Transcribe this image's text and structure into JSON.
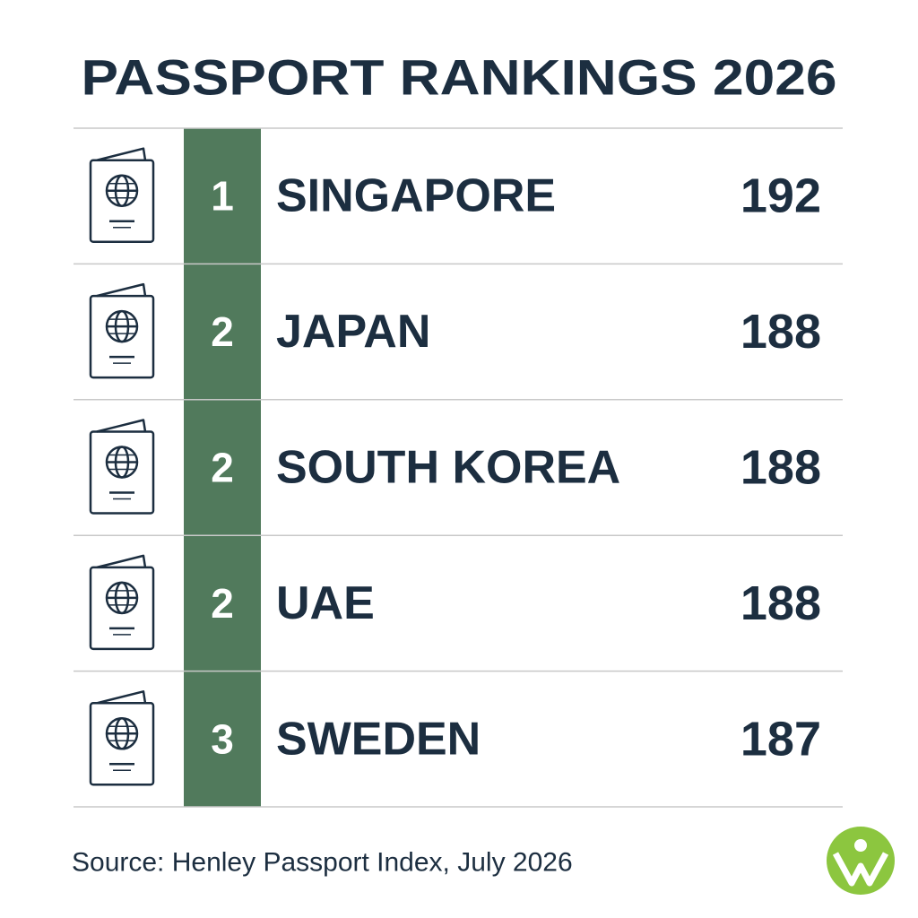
{
  "header": {
    "title": "PASSPORT RANKINGS 2026"
  },
  "table": {
    "rows": [
      [
        1,
        "SINGAPORE",
        192
      ],
      [
        2,
        "JAPAN",
        188
      ],
      [
        2,
        "SOUTH KOREA",
        188
      ],
      [
        2,
        "UAE",
        188
      ],
      [
        3,
        "SWEDEN",
        187
      ]
    ]
  },
  "footer": {
    "source": "Source: Henley Passport Index, July 2026"
  }
}
